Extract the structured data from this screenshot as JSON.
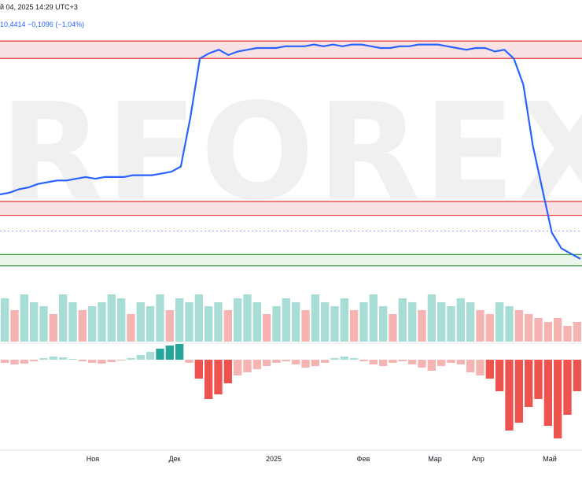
{
  "header": {
    "line1": "й 04, 2025 14:29 UTC+3",
    "line2": "10,4414  −0,1096 (−1,04%)"
  },
  "watermark_text": "RFOREX.",
  "colors": {
    "price_line": "#2962ff",
    "resistance_zone": "#f8d7da",
    "resistance_line": "#e53935",
    "support_zone": "#e3f2e3",
    "support_line": "#43a047",
    "bull": "#26a69a",
    "bull_light": "#a8ddd5",
    "bear": "#ef5350",
    "bear_light": "#f5b3b1",
    "divider": "#d1d4dc"
  },
  "chart_data": {
    "type": "line",
    "x_tick_labels": [
      "Ноя",
      "Дек",
      "2025",
      "Фев",
      "Мар",
      "Апр",
      "Май"
    ],
    "price_series": [
      1.2,
      1.3,
      1.5,
      1.6,
      1.8,
      1.9,
      2.0,
      2.0,
      2.1,
      2.2,
      2.1,
      2.2,
      2.2,
      2.2,
      2.3,
      2.3,
      2.3,
      2.4,
      2.5,
      2.8,
      5.6,
      9.0,
      9.3,
      9.5,
      9.2,
      9.4,
      9.5,
      9.6,
      9.6,
      9.6,
      9.7,
      9.7,
      9.7,
      9.8,
      9.7,
      9.8,
      9.7,
      9.8,
      9.8,
      9.7,
      9.6,
      9.6,
      9.7,
      9.7,
      9.8,
      9.8,
      9.8,
      9.7,
      9.6,
      9.5,
      9.6,
      9.6,
      9.4,
      9.5,
      9.0,
      7.5,
      4.0,
      1.5,
      -1.0,
      -1.9,
      -2.2,
      -2.5
    ],
    "horizontal_zones": [
      {
        "kind": "resistance",
        "low": 9.0,
        "high": 10.0
      },
      {
        "kind": "resistance",
        "low": 0.0,
        "high": 0.8
      },
      {
        "kind": "support",
        "low": -2.9,
        "high": -2.25
      }
    ],
    "dotted_level": -0.9,
    "y_range": [
      -3.0,
      11.0
    ],
    "histogram_top": {
      "description": "two-row up/down bars",
      "up_ratio_series": [
        0.55,
        0.4,
        0.6,
        0.5,
        0.45,
        0.35,
        0.6,
        0.5,
        0.4,
        0.45,
        0.5,
        0.6,
        0.55,
        0.35,
        0.5,
        0.45,
        0.6,
        0.4,
        0.55,
        0.5,
        0.6,
        0.45,
        0.5,
        0.4,
        0.55,
        0.6,
        0.5,
        0.35,
        0.45,
        0.55,
        0.5,
        0.4,
        0.6,
        0.5,
        0.45,
        0.55,
        0.4,
        0.5,
        0.6,
        0.45,
        0.35,
        0.55,
        0.5,
        0.4,
        0.6,
        0.5,
        0.45,
        0.55,
        0.5,
        0.4,
        0.35,
        0.5,
        0.45,
        0.4,
        0.35,
        0.3,
        0.25,
        0.3,
        0.2,
        0.25
      ]
    },
    "histogram_bottom": {
      "description": "oscillator bars",
      "values": [
        -0.2,
        -0.3,
        -0.25,
        -0.1,
        0.1,
        0.2,
        0.15,
        0.05,
        -0.1,
        -0.2,
        -0.25,
        -0.15,
        -0.05,
        0.1,
        0.3,
        0.5,
        0.7,
        0.9,
        1.0,
        -0.2,
        -1.2,
        -2.5,
        -2.2,
        -1.5,
        -1.0,
        -0.8,
        -0.6,
        -0.4,
        -0.2,
        -0.1,
        -0.3,
        -0.5,
        -0.4,
        -0.2,
        0.1,
        0.2,
        0.1,
        -0.1,
        -0.3,
        -0.4,
        -0.2,
        -0.1,
        -0.3,
        -0.5,
        -0.7,
        -0.4,
        -0.2,
        -0.3,
        -0.8,
        -1.0,
        -1.2,
        -2.0,
        -4.5,
        -4.0,
        -3.0,
        -2.5,
        -4.2,
        -5.0,
        -3.5,
        -2.0
      ]
    }
  }
}
